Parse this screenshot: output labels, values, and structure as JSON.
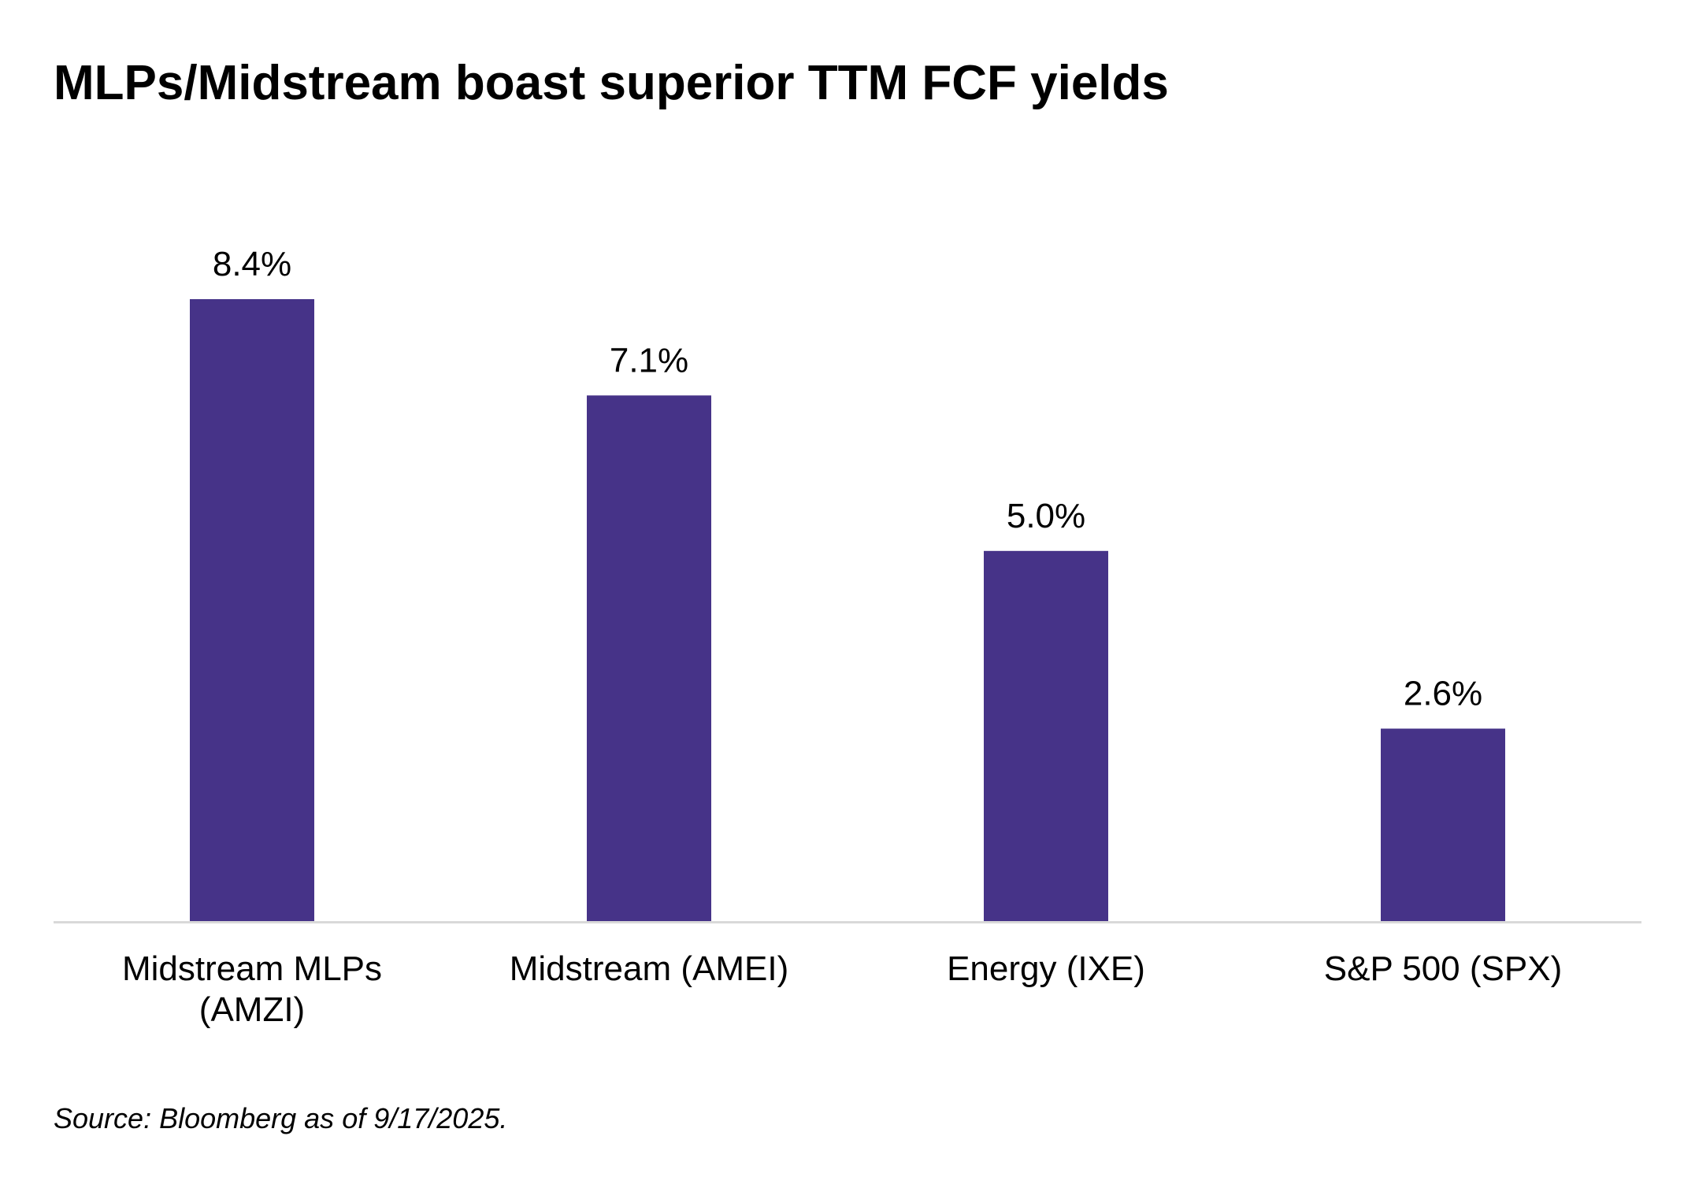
{
  "title": "MLPs/Midstream boast superior TTM FCF yields",
  "source": "Source: Bloomberg as of 9/17/2025.",
  "colors": {
    "bar": "#463388",
    "axis": "#d9d9d9",
    "text": "#000000"
  },
  "chart_data": {
    "type": "bar",
    "title": "MLPs/Midstream boast superior TTM FCF yields",
    "categories": [
      [
        "Midstream MLPs",
        "(AMZI)"
      ],
      [
        "Midstream (AMEI)"
      ],
      [
        "Energy (IXE)"
      ],
      [
        "S&P 500 (SPX)"
      ]
    ],
    "values": [
      8.4,
      7.1,
      5.0,
      2.6
    ],
    "data_labels": [
      "8.4%",
      "7.1%",
      "5.0%",
      "2.6%"
    ],
    "unit": "%",
    "ylim": [
      0,
      8.4
    ],
    "grid": false,
    "legend": "none",
    "xlabel": "",
    "ylabel": ""
  }
}
